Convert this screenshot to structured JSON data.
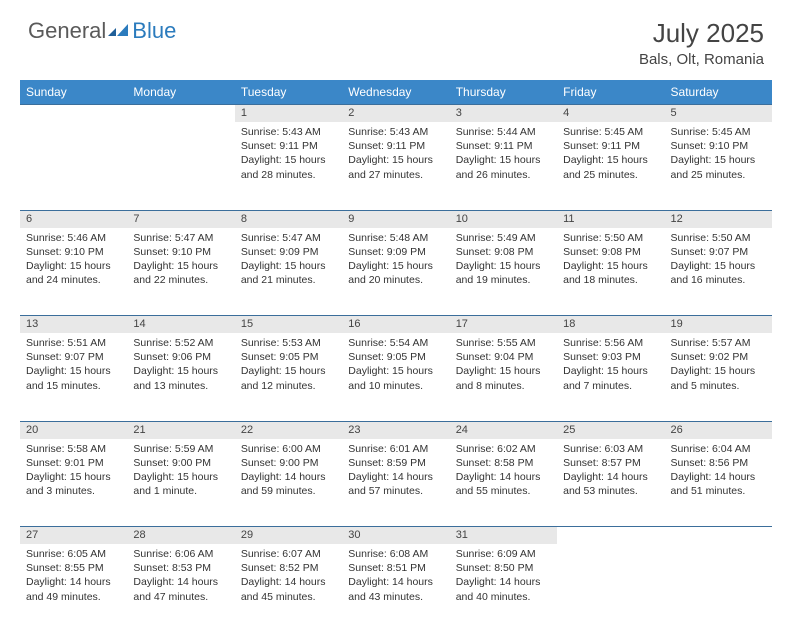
{
  "logo": {
    "text1": "General",
    "text2": "Blue"
  },
  "title": "July 2025",
  "location": "Bals, Olt, Romania",
  "colors": {
    "header_bg": "#3b87c8",
    "header_text": "#ffffff",
    "daynum_bg": "#e8e8e8",
    "border": "#3b6e9b",
    "logo_gray": "#5a5a5a",
    "logo_blue": "#2b7bbd"
  },
  "daysOfWeek": [
    "Sunday",
    "Monday",
    "Tuesday",
    "Wednesday",
    "Thursday",
    "Friday",
    "Saturday"
  ],
  "weeks": [
    [
      null,
      null,
      {
        "n": "1",
        "sr": "5:43 AM",
        "ss": "9:11 PM",
        "dl": "15 hours and 28 minutes."
      },
      {
        "n": "2",
        "sr": "5:43 AM",
        "ss": "9:11 PM",
        "dl": "15 hours and 27 minutes."
      },
      {
        "n": "3",
        "sr": "5:44 AM",
        "ss": "9:11 PM",
        "dl": "15 hours and 26 minutes."
      },
      {
        "n": "4",
        "sr": "5:45 AM",
        "ss": "9:11 PM",
        "dl": "15 hours and 25 minutes."
      },
      {
        "n": "5",
        "sr": "5:45 AM",
        "ss": "9:10 PM",
        "dl": "15 hours and 25 minutes."
      }
    ],
    [
      {
        "n": "6",
        "sr": "5:46 AM",
        "ss": "9:10 PM",
        "dl": "15 hours and 24 minutes."
      },
      {
        "n": "7",
        "sr": "5:47 AM",
        "ss": "9:10 PM",
        "dl": "15 hours and 22 minutes."
      },
      {
        "n": "8",
        "sr": "5:47 AM",
        "ss": "9:09 PM",
        "dl": "15 hours and 21 minutes."
      },
      {
        "n": "9",
        "sr": "5:48 AM",
        "ss": "9:09 PM",
        "dl": "15 hours and 20 minutes."
      },
      {
        "n": "10",
        "sr": "5:49 AM",
        "ss": "9:08 PM",
        "dl": "15 hours and 19 minutes."
      },
      {
        "n": "11",
        "sr": "5:50 AM",
        "ss": "9:08 PM",
        "dl": "15 hours and 18 minutes."
      },
      {
        "n": "12",
        "sr": "5:50 AM",
        "ss": "9:07 PM",
        "dl": "15 hours and 16 minutes."
      }
    ],
    [
      {
        "n": "13",
        "sr": "5:51 AM",
        "ss": "9:07 PM",
        "dl": "15 hours and 15 minutes."
      },
      {
        "n": "14",
        "sr": "5:52 AM",
        "ss": "9:06 PM",
        "dl": "15 hours and 13 minutes."
      },
      {
        "n": "15",
        "sr": "5:53 AM",
        "ss": "9:05 PM",
        "dl": "15 hours and 12 minutes."
      },
      {
        "n": "16",
        "sr": "5:54 AM",
        "ss": "9:05 PM",
        "dl": "15 hours and 10 minutes."
      },
      {
        "n": "17",
        "sr": "5:55 AM",
        "ss": "9:04 PM",
        "dl": "15 hours and 8 minutes."
      },
      {
        "n": "18",
        "sr": "5:56 AM",
        "ss": "9:03 PM",
        "dl": "15 hours and 7 minutes."
      },
      {
        "n": "19",
        "sr": "5:57 AM",
        "ss": "9:02 PM",
        "dl": "15 hours and 5 minutes."
      }
    ],
    [
      {
        "n": "20",
        "sr": "5:58 AM",
        "ss": "9:01 PM",
        "dl": "15 hours and 3 minutes."
      },
      {
        "n": "21",
        "sr": "5:59 AM",
        "ss": "9:00 PM",
        "dl": "15 hours and 1 minute."
      },
      {
        "n": "22",
        "sr": "6:00 AM",
        "ss": "9:00 PM",
        "dl": "14 hours and 59 minutes."
      },
      {
        "n": "23",
        "sr": "6:01 AM",
        "ss": "8:59 PM",
        "dl": "14 hours and 57 minutes."
      },
      {
        "n": "24",
        "sr": "6:02 AM",
        "ss": "8:58 PM",
        "dl": "14 hours and 55 minutes."
      },
      {
        "n": "25",
        "sr": "6:03 AM",
        "ss": "8:57 PM",
        "dl": "14 hours and 53 minutes."
      },
      {
        "n": "26",
        "sr": "6:04 AM",
        "ss": "8:56 PM",
        "dl": "14 hours and 51 minutes."
      }
    ],
    [
      {
        "n": "27",
        "sr": "6:05 AM",
        "ss": "8:55 PM",
        "dl": "14 hours and 49 minutes."
      },
      {
        "n": "28",
        "sr": "6:06 AM",
        "ss": "8:53 PM",
        "dl": "14 hours and 47 minutes."
      },
      {
        "n": "29",
        "sr": "6:07 AM",
        "ss": "8:52 PM",
        "dl": "14 hours and 45 minutes."
      },
      {
        "n": "30",
        "sr": "6:08 AM",
        "ss": "8:51 PM",
        "dl": "14 hours and 43 minutes."
      },
      {
        "n": "31",
        "sr": "6:09 AM",
        "ss": "8:50 PM",
        "dl": "14 hours and 40 minutes."
      },
      null,
      null
    ]
  ],
  "labels": {
    "sunrise": "Sunrise: ",
    "sunset": "Sunset: ",
    "daylight": "Daylight: "
  }
}
